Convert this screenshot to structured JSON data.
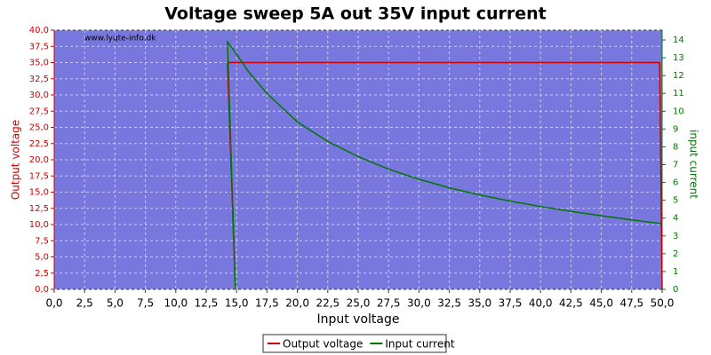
{
  "chart_data": {
    "type": "line",
    "title": "Voltage sweep 5A out 35V input current",
    "watermark": "www.lygte-info.dk",
    "x_label": "Input voltage",
    "y_label": "Output voltage",
    "y2_label": "input current",
    "x": [
      14.9,
      14.25,
      15,
      16,
      17.5,
      20,
      22.5,
      25,
      27.5,
      30,
      32.5,
      35,
      37.5,
      40,
      42.5,
      45,
      47.5,
      49.8,
      50
    ],
    "series": [
      {
        "name": "Output voltage",
        "color": "#cc0000",
        "axis": "y",
        "values": [
          0,
          35,
          35,
          35,
          35,
          35,
          35,
          35,
          35,
          35,
          35,
          35,
          35,
          35,
          35,
          35,
          35,
          35,
          0
        ]
      },
      {
        "name": "Input current",
        "color": "#007700",
        "axis": "y2",
        "values": [
          0,
          13.9,
          13.2,
          12.2,
          11.0,
          9.4,
          8.3,
          7.45,
          6.75,
          6.18,
          5.7,
          5.3,
          4.95,
          4.65,
          4.38,
          4.13,
          3.9,
          3.7,
          3.68
        ]
      }
    ],
    "xlim": [
      0,
      50
    ],
    "xticks": [
      {
        "value": 0,
        "label": "0,0"
      },
      {
        "value": 2.5,
        "label": "2,5"
      },
      {
        "value": 5,
        "label": "5,0"
      },
      {
        "value": 7.5,
        "label": "7,5"
      },
      {
        "value": 10,
        "label": "10,0"
      },
      {
        "value": 12.5,
        "label": "12,5"
      },
      {
        "value": 15,
        "label": "15,0"
      },
      {
        "value": 17.5,
        "label": "17,5"
      },
      {
        "value": 20,
        "label": "20,0"
      },
      {
        "value": 22.5,
        "label": "22,5"
      },
      {
        "value": 25,
        "label": "25,0"
      },
      {
        "value": 27.5,
        "label": "27,5"
      },
      {
        "value": 30,
        "label": "30,0"
      },
      {
        "value": 32.5,
        "label": "32,5"
      },
      {
        "value": 35,
        "label": "35,0"
      },
      {
        "value": 37.5,
        "label": "37,5"
      },
      {
        "value": 40,
        "label": "40,0"
      },
      {
        "value": 42.5,
        "label": "42,5"
      },
      {
        "value": 45,
        "label": "45,0"
      },
      {
        "value": 47.5,
        "label": "47,5"
      },
      {
        "value": 50,
        "label": "50,0"
      }
    ],
    "ylim": [
      0,
      40
    ],
    "yticks": [
      {
        "value": 0,
        "label": "0,0"
      },
      {
        "value": 2.5,
        "label": "2,5"
      },
      {
        "value": 5,
        "label": "5,0"
      },
      {
        "value": 7.5,
        "label": "7,5"
      },
      {
        "value": 10,
        "label": "10,0"
      },
      {
        "value": 12.5,
        "label": "12,5"
      },
      {
        "value": 15,
        "label": "15,0"
      },
      {
        "value": 17.5,
        "label": "17,5"
      },
      {
        "value": 20,
        "label": "20,0"
      },
      {
        "value": 22.5,
        "label": "22,5"
      },
      {
        "value": 25,
        "label": "25,0"
      },
      {
        "value": 27.5,
        "label": "27,5"
      },
      {
        "value": 30,
        "label": "30,0"
      },
      {
        "value": 32.5,
        "label": "32,5"
      },
      {
        "value": 35,
        "label": "35,0"
      },
      {
        "value": 37.5,
        "label": "37,5"
      },
      {
        "value": 40,
        "label": "40,0"
      }
    ],
    "y2lim": [
      0,
      14.55
    ],
    "y2ticks": [
      0,
      1,
      2,
      3,
      4,
      5,
      6,
      7,
      8,
      9,
      10,
      11,
      12,
      13,
      14
    ],
    "grid": true,
    "legend": "bottom"
  }
}
